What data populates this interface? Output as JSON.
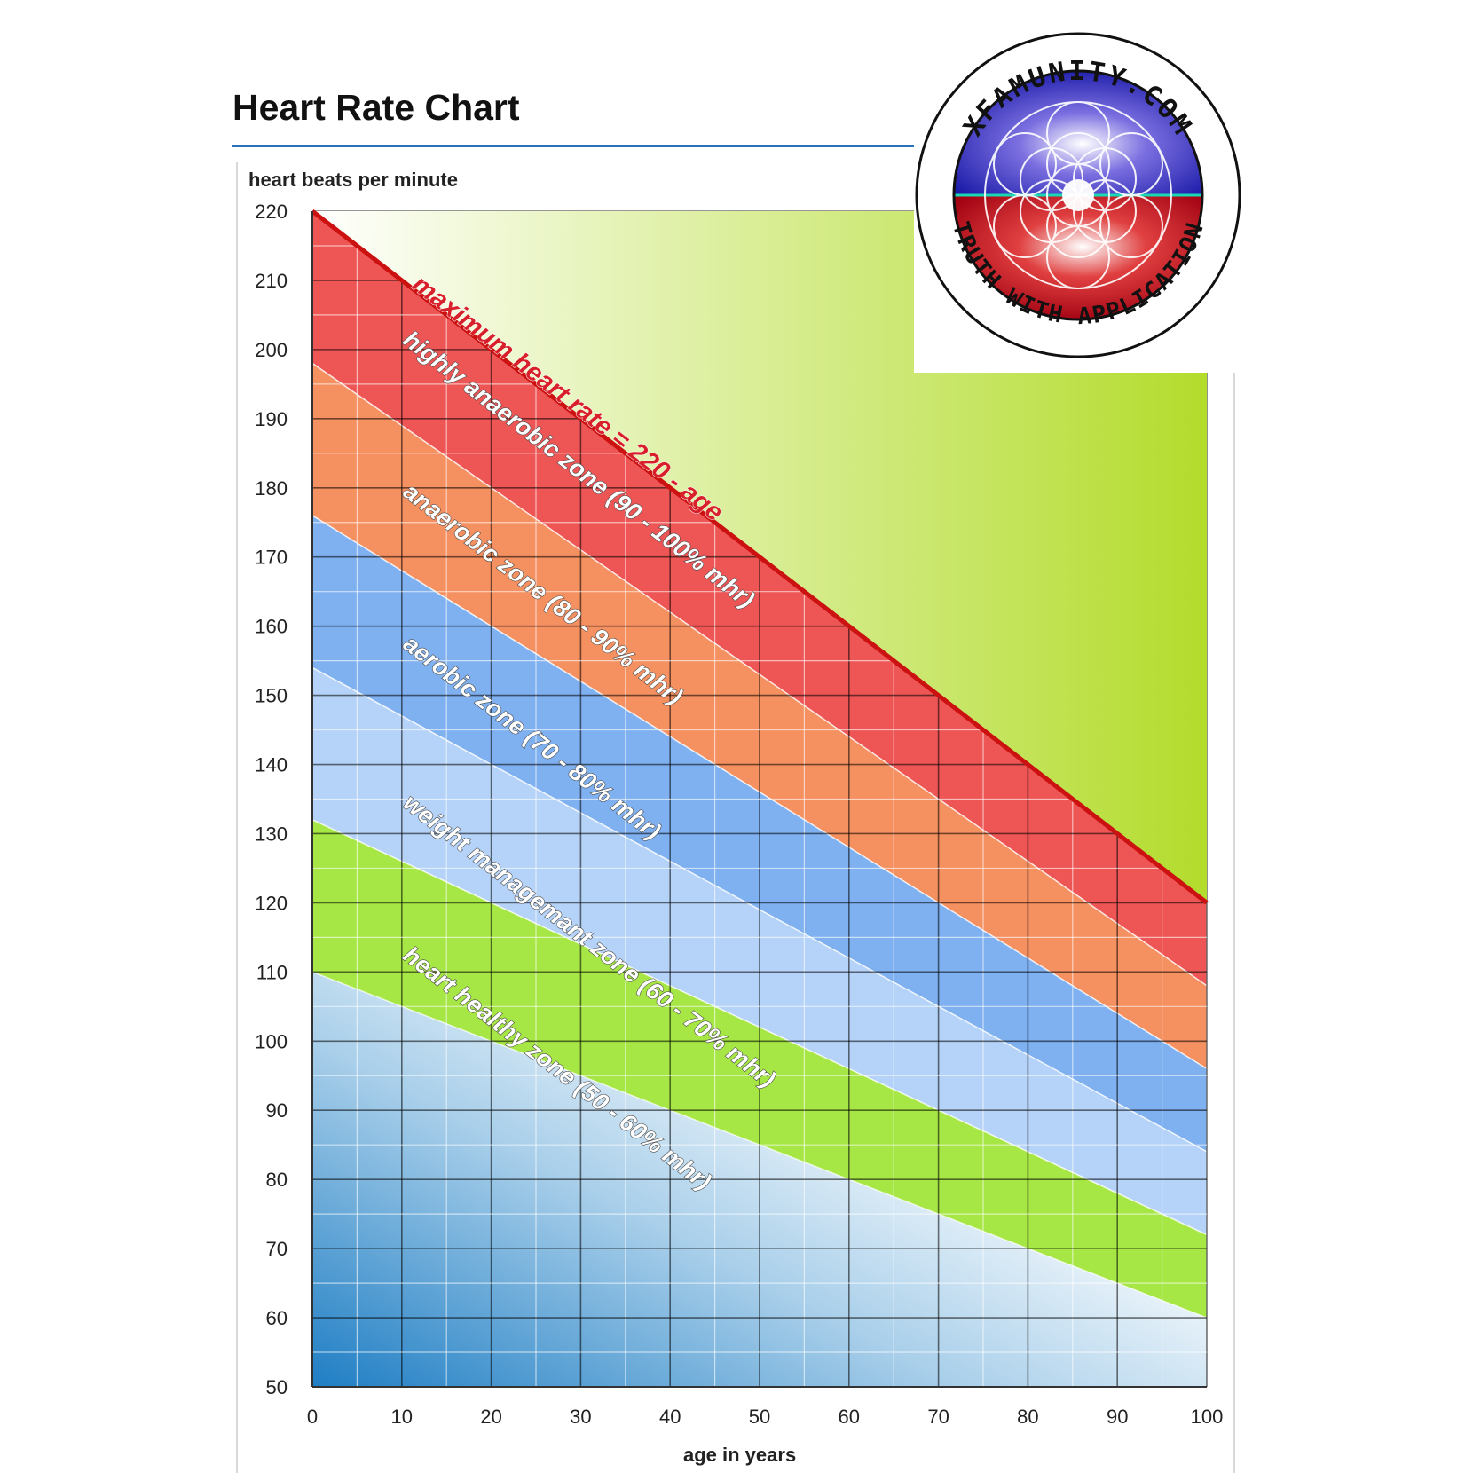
{
  "chart_data": {
    "type": "area",
    "title": "Heart Rate Chart",
    "ylabel": "heart beats per minute",
    "xlabel": "age in years",
    "xlim": [
      0,
      100
    ],
    "ylim": [
      50,
      220
    ],
    "x_ticks": [
      0,
      10,
      20,
      30,
      40,
      50,
      60,
      70,
      80,
      90,
      100
    ],
    "y_ticks": [
      50,
      60,
      70,
      80,
      90,
      100,
      110,
      120,
      130,
      140,
      150,
      160,
      170,
      180,
      190,
      200,
      210,
      220
    ],
    "grid": true,
    "max_line": {
      "label": "maximum heart rate = 220 - age",
      "x": [
        0,
        100
      ],
      "y": [
        220,
        120
      ],
      "color": "#cc1111"
    },
    "series": [
      {
        "name": "highly anaerobic zone (90 - 100% mhr)",
        "x": [
          0,
          100
        ],
        "y_lower": [
          198,
          108
        ],
        "y_upper": [
          220,
          120
        ],
        "color": "#ee5555"
      },
      {
        "name": "anaerobic zone (80 - 90% mhr)",
        "x": [
          0,
          100
        ],
        "y_lower": [
          176,
          96
        ],
        "y_upper": [
          198,
          108
        ],
        "color": "#f59060"
      },
      {
        "name": "aerobic zone (70 - 80% mhr)",
        "x": [
          0,
          100
        ],
        "y_lower": [
          154,
          84
        ],
        "y_upper": [
          176,
          96
        ],
        "color": "#7fb0f0"
      },
      {
        "name": "weight managemant zone (60 - 70% mhr)",
        "x": [
          0,
          100
        ],
        "y_lower": [
          132,
          72
        ],
        "y_upper": [
          154,
          84
        ],
        "color": "#b5d3f8"
      },
      {
        "name": "heart healthy zone (50 - 60% mhr)",
        "x": [
          0,
          100
        ],
        "y_lower": [
          110,
          60
        ],
        "y_upper": [
          132,
          72
        ],
        "color": "#a6e645"
      }
    ]
  },
  "logo": {
    "top_text": "XFAMUNITY.COM",
    "bottom_text": "TRUTH WITH APPLICATION"
  }
}
